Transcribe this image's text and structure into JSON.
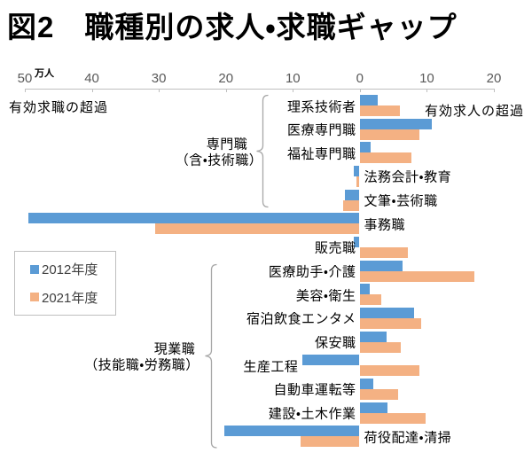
{
  "title": "図2　職種別の求人・求職ギャップ",
  "axis": {
    "unit_label": "万人",
    "ticks": [
      "50",
      "40",
      "30",
      "20",
      "10",
      "0",
      "10",
      "20"
    ],
    "left_annotation": "有効求職の超過",
    "right_annotation": "有効求人の超過"
  },
  "legend": {
    "items": [
      {
        "label": "2012年度",
        "color": "#5b9bd5"
      },
      {
        "label": "2021年度",
        "color": "#f4b183"
      }
    ]
  },
  "groups": [
    {
      "line1": "専門職",
      "line2": "（含・技術職）",
      "covers": [
        "理系技術者",
        "文筆・芸術職"
      ]
    },
    {
      "line1": "現業職",
      "line2": "（技能職・労務職）",
      "covers": [
        "医療助手・介護",
        "荷役配達・清掃"
      ]
    }
  ],
  "chart_data": {
    "type": "bar",
    "orientation": "horizontal",
    "unit": "万人",
    "title": "図2　職種別の求人・求職ギャップ",
    "note": "negative = 有効求職の超過 (bars extend left), positive = 有効求人の超過 (bars extend right)",
    "xlim": [
      -50,
      20
    ],
    "grid": false,
    "legend_position": "middle-left",
    "categories": [
      "理系技術者",
      "医療専門職",
      "福祉専門職",
      "法務会計・教育",
      "文筆・芸術職",
      "事務職",
      "販売職",
      "医療助手・介護",
      "美容・衛生",
      "宿泊飲食エンタメ",
      "保安職",
      "生産工程",
      "自動車運転等",
      "建設・土木作業",
      "荷役配達・清掃"
    ],
    "series": [
      {
        "name": "2012年度",
        "color": "#5b9bd5",
        "values": [
          2.7,
          10.8,
          1.6,
          -0.8,
          -2.2,
          -49.5,
          -0.9,
          6.4,
          1.5,
          8.2,
          4.1,
          -8.5,
          2.1,
          4.2,
          -20.2
        ]
      },
      {
        "name": "2021年度",
        "color": "#f4b183",
        "values": [
          6.0,
          8.9,
          7.7,
          -0.4,
          -2.4,
          -30.5,
          7.2,
          17.1,
          3.3,
          9.2,
          6.2,
          9.0,
          5.7,
          9.9,
          -8.8
        ]
      }
    ],
    "label_side": [
      "left",
      "left",
      "left",
      "right",
      "right",
      "right",
      "left",
      "left",
      "left",
      "left",
      "left",
      "bar-left",
      "left",
      "left",
      "right"
    ]
  }
}
